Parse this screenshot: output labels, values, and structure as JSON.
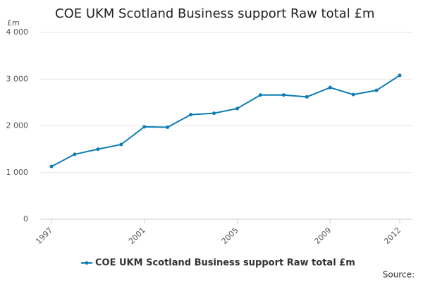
{
  "chart_data": {
    "type": "line",
    "title": "COE UKM Scotland Business support Raw total £m",
    "y_unit": "£m",
    "source": "Source:",
    "x": [
      1997,
      1998,
      1999,
      2000,
      2001,
      2002,
      2003,
      2004,
      2005,
      2006,
      2007,
      2008,
      2009,
      2010,
      2011,
      2012
    ],
    "series": [
      {
        "name": "COE UKM Scotland Business support Raw total £m",
        "color": "#0e7cb4",
        "values": [
          1130,
          1390,
          1500,
          1600,
          1980,
          1970,
          2240,
          2270,
          2370,
          2660,
          2660,
          2620,
          2820,
          2670,
          2760,
          3080
        ]
      }
    ],
    "xlim": [
      1997,
      2012
    ],
    "xticks": [
      1997,
      2001,
      2005,
      2009,
      2012
    ],
    "ylim": [
      0,
      4000
    ],
    "yticks": [
      0,
      {
        "value": 1000,
        "label": "1 000"
      },
      {
        "value": 2000,
        "label": "2 000"
      },
      {
        "value": 3000,
        "label": "3 000"
      },
      {
        "value": 4000,
        "label": "4 000"
      }
    ],
    "grid": true
  }
}
